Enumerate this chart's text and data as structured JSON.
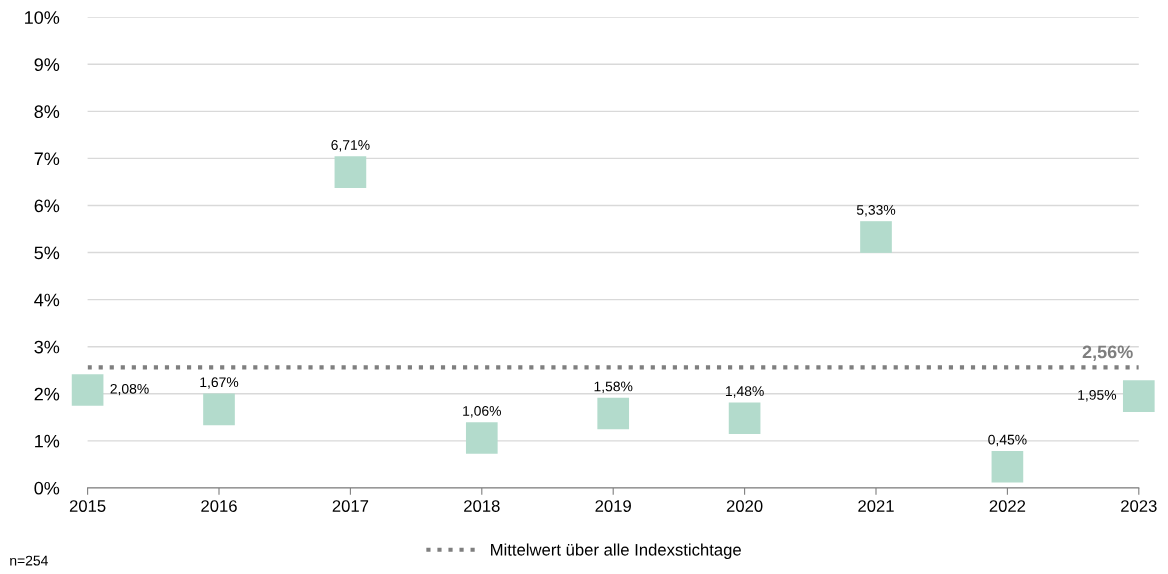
{
  "chart_data": {
    "type": "scatter",
    "x": [
      2015,
      2016,
      2017,
      2018,
      2019,
      2020,
      2021,
      2022,
      2023
    ],
    "values": [
      2.08,
      1.67,
      6.71,
      1.06,
      1.58,
      1.48,
      5.33,
      0.45,
      1.95
    ],
    "value_labels": [
      "2,08%",
      "1,67%",
      "6,71%",
      "1,06%",
      "1,58%",
      "1,48%",
      "5,33%",
      "0,45%",
      "1,95%"
    ],
    "color": "#b3dbcc",
    "marker": "square",
    "xlim": [
      2015,
      2023
    ],
    "xticks": [
      2015,
      2016,
      2017,
      2018,
      2019,
      2020,
      2021,
      2022,
      2023
    ],
    "ylim": [
      0,
      10
    ],
    "yticks": [
      {
        "value": 0,
        "label": "0%"
      },
      {
        "value": 1,
        "label": "1%"
      },
      {
        "value": 2,
        "label": "2%"
      },
      {
        "value": 3,
        "label": "3%"
      },
      {
        "value": 4,
        "label": "4%"
      },
      {
        "value": 5,
        "label": "5%"
      },
      {
        "value": 6,
        "label": "6%"
      },
      {
        "value": 7,
        "label": "7%"
      },
      {
        "value": 8,
        "label": "8%"
      },
      {
        "value": 9,
        "label": "9%"
      },
      {
        "value": 10,
        "label": "10%"
      }
    ],
    "grid": "y",
    "legend": "bottom",
    "ref_lines": [
      {
        "axis": "y",
        "value": 2.56,
        "label": "Mittelwert über alle Indexstichtage",
        "color": "#7f7f7f",
        "line_style": "dotted"
      }
    ],
    "annotations": [
      {
        "text": "2,56%",
        "x": 2023,
        "y": 2.56
      },
      "n=254"
    ]
  }
}
